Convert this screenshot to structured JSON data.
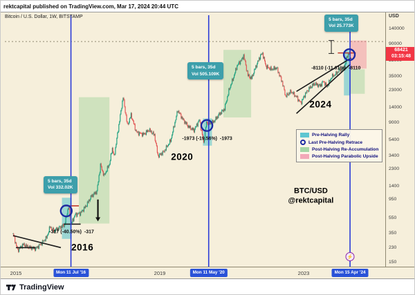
{
  "header": {
    "publish_line": "rektcapital published on TradingView.com, Mar 17, 2024 20:44 UTC"
  },
  "chart": {
    "symbol_line": "Bitcoin / U.S. Dollar, 1W, BITSTAMP"
  },
  "price_axis": {
    "unit": "USD",
    "labels": [
      "140000",
      "90000",
      "55000",
      "35000",
      "23000",
      "14000",
      "9000",
      "5400",
      "3400",
      "2300",
      "1400",
      "950",
      "550",
      "350",
      "230",
      "150"
    ],
    "last_price": "68421",
    "countdown": "03:15:48"
  },
  "time_axis": {
    "year_labels": [
      {
        "text": "2015",
        "year": 2015
      },
      {
        "text": "2019",
        "year": 2019
      },
      {
        "text": "2023",
        "year": 2023
      }
    ]
  },
  "legend": {
    "items": [
      {
        "label": "Pre-Halving Rally",
        "swatch": "teal-box",
        "color": "#5fc6d1"
      },
      {
        "label": "Last Pre-Halving Retrace",
        "swatch": "blue-circle",
        "color": "#1b2aa3"
      },
      {
        "label": "Post-Halving Re-Accumulation",
        "swatch": "green-box",
        "color": "#a5d6a7"
      },
      {
        "label": "Post-Halving Parabolic Upside",
        "swatch": "pink-box",
        "color": "#f2a8b8"
      }
    ]
  },
  "footer": {
    "brand": "TradingView"
  },
  "colors": {
    "chart_background": "#f6efdb",
    "candle_up": "#0f9b79",
    "candle_down": "#e14b4b",
    "halving_line": "#2a3bd8",
    "band_teal": "rgba(64,190,203,0.5)",
    "box_green": "rgba(129,199,132,0.33)",
    "box_pink": "rgba(240,98,125,0.33)",
    "circle_blue": "#1b2aa3",
    "tooltip_bg": "#3d9fab",
    "badge_red": "#f23645",
    "badge_blue": "#2a52d8"
  },
  "chart_data": {
    "type": "candlestick",
    "title": "Bitcoin / U.S. Dollar",
    "interval": "1W",
    "exchange": "BITSTAMP",
    "y_scale": "log",
    "x_domain_years": [
      2014.7,
      2025.3
    ],
    "y_domain_price": [
      150,
      230000
    ],
    "price_anchors": [
      [
        2014.92,
        350
      ],
      [
        2015.05,
        215
      ],
      [
        2015.2,
        255
      ],
      [
        2015.35,
        235
      ],
      [
        2015.55,
        225
      ],
      [
        2015.7,
        260
      ],
      [
        2015.85,
        310
      ],
      [
        2015.95,
        430
      ],
      [
        2016.05,
        380
      ],
      [
        2016.2,
        415
      ],
      [
        2016.35,
        450
      ],
      [
        2016.46,
        760
      ],
      [
        2016.54,
        470
      ],
      [
        2016.65,
        610
      ],
      [
        2016.8,
        640
      ],
      [
        2016.95,
        790
      ],
      [
        2017.1,
        1050
      ],
      [
        2017.25,
        1200
      ],
      [
        2017.35,
        2600
      ],
      [
        2017.45,
        1900
      ],
      [
        2017.6,
        2700
      ],
      [
        2017.68,
        4300
      ],
      [
        2017.73,
        3300
      ],
      [
        2017.9,
        11000
      ],
      [
        2017.98,
        19200
      ],
      [
        2018.1,
        8300
      ],
      [
        2018.2,
        11300
      ],
      [
        2018.35,
        6800
      ],
      [
        2018.55,
        6400
      ],
      [
        2018.7,
        7300
      ],
      [
        2018.85,
        6300
      ],
      [
        2018.95,
        3400
      ],
      [
        2019.1,
        3800
      ],
      [
        2019.3,
        5300
      ],
      [
        2019.5,
        13000
      ],
      [
        2019.65,
        9800
      ],
      [
        2019.8,
        8000
      ],
      [
        2019.95,
        7200
      ],
      [
        2020.1,
        9800
      ],
      [
        2020.22,
        5000
      ],
      [
        2020.3,
        9200
      ],
      [
        2020.36,
        8700
      ],
      [
        2020.5,
        9300
      ],
      [
        2020.65,
        11500
      ],
      [
        2020.8,
        13500
      ],
      [
        2020.92,
        23000
      ],
      [
        2021.05,
        34000
      ],
      [
        2021.15,
        48000
      ],
      [
        2021.3,
        59000
      ],
      [
        2021.33,
        64500
      ],
      [
        2021.45,
        36000
      ],
      [
        2021.55,
        33000
      ],
      [
        2021.65,
        44000
      ],
      [
        2021.8,
        64500
      ],
      [
        2021.86,
        68500
      ],
      [
        2021.95,
        47000
      ],
      [
        2022.1,
        43000
      ],
      [
        2022.25,
        45000
      ],
      [
        2022.4,
        30000
      ],
      [
        2022.5,
        19500
      ],
      [
        2022.65,
        22500
      ],
      [
        2022.8,
        19200
      ],
      [
        2022.92,
        16000
      ],
      [
        2023.05,
        21000
      ],
      [
        2023.15,
        24500
      ],
      [
        2023.3,
        28300
      ],
      [
        2023.45,
        26500
      ],
      [
        2023.55,
        30300
      ],
      [
        2023.65,
        26000
      ],
      [
        2023.78,
        34500
      ],
      [
        2023.9,
        37800
      ],
      [
        2024.0,
        42500
      ],
      [
        2024.08,
        43000
      ],
      [
        2024.14,
        48000
      ],
      [
        2024.2,
        62000
      ],
      [
        2024.26,
        68500
      ],
      [
        2024.3,
        68421
      ]
    ],
    "halvings": [
      {
        "year": 2016.53,
        "badge": "Mon 11 Jul '16"
      },
      {
        "year": 2020.36,
        "badge": "Mon 11 May '20"
      },
      {
        "year": 2024.29,
        "badge": "Mon 15 Apr '24"
      }
    ],
    "pre_halving_rally_bands": [
      {
        "from": 2016.28,
        "to": 2016.55,
        "price_low": 300,
        "price_high": 1000
      },
      {
        "from": 2020.2,
        "to": 2020.45,
        "price_low": 4600,
        "price_high": 10200
      },
      {
        "from": 2024.12,
        "to": 2024.3,
        "price_low": 20000,
        "price_high": 74000
      }
    ],
    "reaccumulation_boxes": [
      {
        "from": 2016.75,
        "to": 2017.6,
        "price_low": 470,
        "price_high": 19000
      },
      {
        "from": 2020.77,
        "to": 2021.54,
        "price_low": 10500,
        "price_high": 76000
      },
      {
        "from": 2024.28,
        "to": 2024.7,
        "price_low": 21000,
        "price_high": 43000
      }
    ],
    "parabolic_boxes": [
      {
        "from": 2024.3,
        "to": 2024.75,
        "price_low": 44000,
        "price_high": 100000
      }
    ],
    "retrace_circles": [
      {
        "year": 2016.4,
        "price": 680
      },
      {
        "year": 2020.31,
        "price": 8300
      },
      {
        "year": 2024.27,
        "price": 66000
      }
    ],
    "stat_tooltips": [
      {
        "year": 2015.77,
        "price": 1900,
        "lines": [
          "5 bars, 35d",
          "Vol 332.02K"
        ]
      },
      {
        "year": 2019.77,
        "price": 53000,
        "lines": [
          "5 bars, 35d",
          "Vol 505.109K"
        ]
      },
      {
        "year": 2023.58,
        "price": 215000,
        "lines": [
          "5 bars, 35d",
          "Vol 25.773K"
        ]
      }
    ],
    "retrace_labels": [
      {
        "year": 2016.55,
        "price": 365,
        "text": "-317 (-40.50%)  -317"
      },
      {
        "year": 2020.32,
        "price": 5600,
        "text": "-1973 (-19.56%)  -1973"
      },
      {
        "year": 2023.9,
        "price": 44000,
        "text": "-8110 (-11.01%)  -8110"
      }
    ],
    "cycle_year_labels": [
      {
        "year": 2016.85,
        "price": 232,
        "text": "2016"
      },
      {
        "year": 2019.62,
        "price": 3300,
        "text": "2020"
      },
      {
        "year": 2023.47,
        "price": 15500,
        "text": "2024"
      }
    ],
    "watermark": {
      "year": 2023.2,
      "price": 1050,
      "lines": [
        "BTC/USD",
        "@rektcapital"
      ]
    },
    "trendlines": [
      {
        "x0": 2014.92,
        "p0": 330,
        "x1": 2016.25,
        "p1": 232
      },
      {
        "x0": 2022.8,
        "p0": 22500,
        "x1": 2024.32,
        "p1": 60000
      },
      {
        "x0": 2022.8,
        "p0": 11800,
        "x1": 2024.3,
        "p1": 50000
      }
    ],
    "h_segments": [
      {
        "x0": 2016.3,
        "x1": 2016.75,
        "price": 790,
        "color": "#c0392b"
      },
      {
        "x0": 2016.33,
        "x1": 2016.8,
        "price": 462,
        "color": "#1a1a1a"
      },
      {
        "x0": 2023.95,
        "x1": 2024.45,
        "price": 69500,
        "color": "#c0392b"
      },
      {
        "x0": 2015.0,
        "x1": 2015.55,
        "price": 232,
        "color": "#1a1a1a"
      }
    ],
    "dotted_levels": [
      {
        "price": 97000
      }
    ],
    "drop_arrow": {
      "year": 2017.28,
      "from_price": 950,
      "to_price": 500
    },
    "measure_ibeam": {
      "year": 2023.77,
      "from_price": 100000,
      "to_price": 68421
    },
    "event_marker": {
      "year": 2024.29,
      "icon": "lightning-icon"
    }
  }
}
